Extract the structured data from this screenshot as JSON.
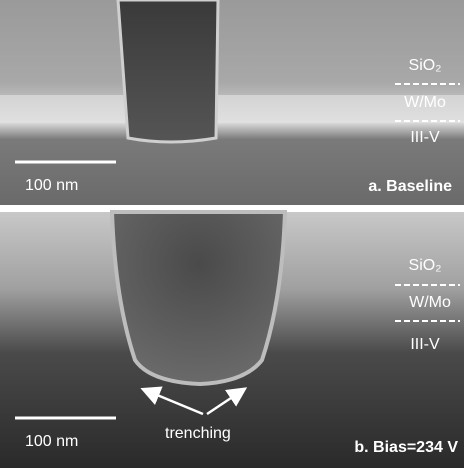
{
  "panels": [
    {
      "layers": [
        "SiO₂",
        "W/Mo",
        "III-V"
      ],
      "scale_bar": "100 nm",
      "caption": "a. Baseline"
    },
    {
      "layers": [
        "SiO₂",
        "W/Mo",
        "III-V"
      ],
      "scale_bar": "100 nm",
      "caption": "b. Bias=234 V",
      "annotation": "trenching"
    }
  ]
}
